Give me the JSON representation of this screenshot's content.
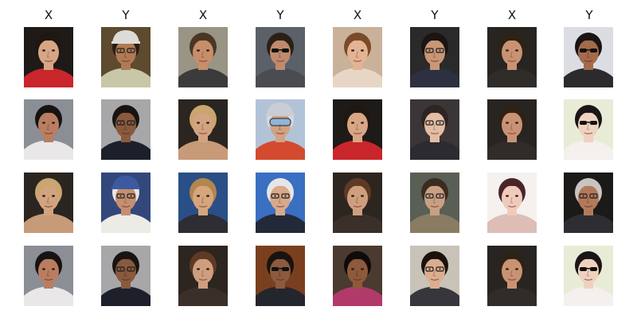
{
  "columns": [
    "X",
    "Y",
    "X",
    "Y",
    "X",
    "Y",
    "X",
    "Y"
  ],
  "grid": [
    [
      {
        "bg": "#1e1a17",
        "skin": "#d8a585",
        "hair": "#1f1711",
        "shirt": "#c9262c",
        "glasses": "none",
        "cap": ""
      },
      {
        "bg": "#5d4a2f",
        "skin": "#b07a55",
        "hair": "#2a1d12",
        "shirt": "#c8c7a8",
        "glasses": "clear",
        "cap": "#dcdcd6"
      },
      {
        "bg": "#9a9485",
        "skin": "#c78e6a",
        "hair": "#4a3724",
        "shirt": "#3b3b3b",
        "glasses": "none",
        "cap": ""
      },
      {
        "bg": "#5c6068",
        "skin": "#c08a6c",
        "hair": "#2b2018",
        "shirt": "#4a4c52",
        "glasses": "sun",
        "cap": ""
      },
      {
        "bg": "#c9b19a",
        "skin": "#e3b394",
        "hair": "#7b4a28",
        "shirt": "#e7d6c5",
        "glasses": "none",
        "cap": ""
      },
      {
        "bg": "#2a2a2a",
        "skin": "#c99676",
        "hair": "#1a1412",
        "shirt": "#2d3040",
        "glasses": "clear",
        "cap": ""
      },
      {
        "bg": "#272421",
        "skin": "#c99373",
        "hair": "#2e2216",
        "shirt": "#2f2c29",
        "glasses": "none",
        "cap": ""
      },
      {
        "bg": "#dcdde3",
        "skin": "#a56a4b",
        "hair": "#1b1512",
        "shirt": "#2c2a2c",
        "glasses": "sun",
        "cap": ""
      }
    ],
    [
      {
        "bg": "#8b8e95",
        "skin": "#b97e60",
        "hair": "#171312",
        "shirt": "#e9e7e8",
        "glasses": "none",
        "cap": ""
      },
      {
        "bg": "#a7a7aa",
        "skin": "#8a5a3e",
        "hair": "#191411",
        "shirt": "#1d1f2a",
        "glasses": "clear",
        "cap": ""
      },
      {
        "bg": "#2a2520",
        "skin": "#d2a37f",
        "hair": "#c9a56f",
        "shirt": "#c79a78",
        "glasses": "none",
        "cap": ""
      },
      {
        "bg": "#b3c3d7",
        "skin": "#d3a183",
        "hair": "#d6d8de",
        "shirt": "#d34a2e",
        "glasses": "goggle",
        "cap": "#c9ced6"
      },
      {
        "bg": "#1e1a17",
        "skin": "#d8a585",
        "hair": "#1f1711",
        "shirt": "#c9262c",
        "glasses": "none",
        "cap": ""
      },
      {
        "bg": "#3a3536",
        "skin": "#e3bda4",
        "hair": "#2e2522",
        "shirt": "#2b2b30",
        "glasses": "clear",
        "cap": ""
      },
      {
        "bg": "#272421",
        "skin": "#c99373",
        "hair": "#2e2216",
        "shirt": "#2f2c29",
        "glasses": "none",
        "cap": ""
      },
      {
        "bg": "#e8ecd6",
        "skin": "#efd2be",
        "hair": "#1a1618",
        "shirt": "#f3f0ee",
        "glasses": "sun",
        "cap": ""
      }
    ],
    [
      {
        "bg": "#2a2520",
        "skin": "#d2a37f",
        "hair": "#c9a56f",
        "shirt": "#c79a78",
        "glasses": "none",
        "cap": ""
      },
      {
        "bg": "#33477a",
        "skin": "#c58f70",
        "hair": "#e8e7e3",
        "shirt": "#ecebe6",
        "glasses": "clear",
        "cap": "#3c5aa0"
      },
      {
        "bg": "#2a4f86",
        "skin": "#d6a57c",
        "hair": "#b1864f",
        "shirt": "#2d2d33",
        "glasses": "none",
        "cap": ""
      },
      {
        "bg": "#3a6fc1",
        "skin": "#d8a98a",
        "hair": "#e6e6e6",
        "shirt": "#222a3a",
        "glasses": "clear",
        "cap": ""
      },
      {
        "bg": "#2c2520",
        "skin": "#cf9e7e",
        "hair": "#5e3a24",
        "shirt": "#3a2f29",
        "glasses": "none",
        "cap": ""
      },
      {
        "bg": "#5a5f55",
        "skin": "#caa083",
        "hair": "#3b2c22",
        "shirt": "#8a7b63",
        "glasses": "clear",
        "cap": ""
      },
      {
        "bg": "#f4f1ef",
        "skin": "#f0cbbb",
        "hair": "#4a2428",
        "shirt": "#ddbdb4",
        "glasses": "none",
        "cap": ""
      },
      {
        "bg": "#1b1a19",
        "skin": "#b4795a",
        "hair": "#c8c5c0",
        "shirt": "#2d2d32",
        "glasses": "clear",
        "cap": ""
      }
    ],
    [
      {
        "bg": "#8b8e95",
        "skin": "#b97e60",
        "hair": "#171312",
        "shirt": "#e9e7e8",
        "glasses": "none",
        "cap": ""
      },
      {
        "bg": "#a7a7aa",
        "skin": "#8a5a3e",
        "hair": "#191411",
        "shirt": "#1d1f2a",
        "glasses": "clear",
        "cap": ""
      },
      {
        "bg": "#2c2520",
        "skin": "#cf9e7e",
        "hair": "#5e3a24",
        "shirt": "#3a2f29",
        "glasses": "none",
        "cap": ""
      },
      {
        "bg": "#7a3f1e",
        "skin": "#8c5a3e",
        "hair": "#19130f",
        "shirt": "#24262d",
        "glasses": "sun",
        "cap": ""
      },
      {
        "bg": "#4b3a2f",
        "skin": "#8d5a3b",
        "hair": "#0f0b09",
        "shirt": "#b23a6b",
        "glasses": "none",
        "cap": ""
      },
      {
        "bg": "#c9c2b8",
        "skin": "#dcae8f",
        "hair": "#1a120d",
        "shirt": "#36363c",
        "glasses": "clear",
        "cap": ""
      },
      {
        "bg": "#272421",
        "skin": "#c99373",
        "hair": "#2e2216",
        "shirt": "#2f2c29",
        "glasses": "none",
        "cap": ""
      },
      {
        "bg": "#e8ecd6",
        "skin": "#efd2be",
        "hair": "#1a1618",
        "shirt": "#f3f0ee",
        "glasses": "sun",
        "cap": ""
      }
    ]
  ]
}
